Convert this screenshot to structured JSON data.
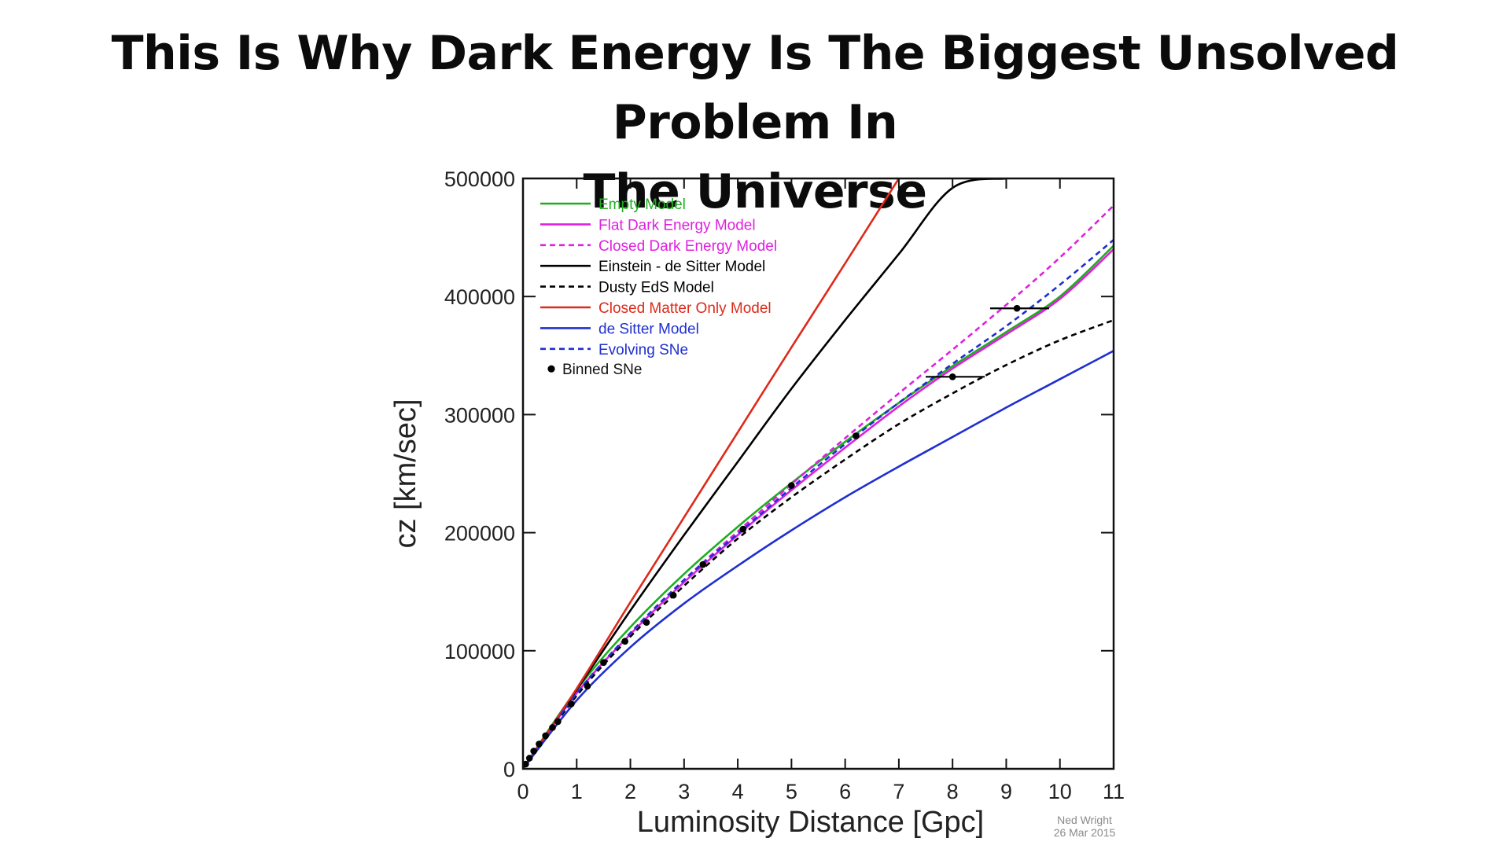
{
  "headline": {
    "line1": "This Is Why Dark Energy Is The Biggest Unsolved Problem In",
    "line2": "The Universe"
  },
  "chart_data": {
    "type": "line",
    "xlabel": "Luminosity Distance [Gpc]",
    "ylabel": "cz [km/sec]",
    "xlim": [
      0,
      11
    ],
    "ylim": [
      0,
      500000
    ],
    "xticks": [
      "0",
      "1",
      "2",
      "3",
      "4",
      "5",
      "6",
      "7",
      "8",
      "9",
      "10",
      "11"
    ],
    "yticks": [
      "0",
      "100000",
      "200000",
      "300000",
      "400000",
      "500000"
    ],
    "grid": false,
    "legend_position": "top-left",
    "credit": [
      "Ned Wright",
      "26 Mar 2015"
    ],
    "series": [
      {
        "name": "Empty Model",
        "color": "#1fae1f",
        "style": "solid",
        "x": [
          0,
          1,
          2,
          3,
          4,
          5,
          6,
          7,
          8,
          9,
          10,
          11
        ],
        "y": [
          0,
          67000,
          120000,
          165000,
          205000,
          242000,
          277000,
          310000,
          341000,
          370000,
          400000,
          443000
        ]
      },
      {
        "name": "Flat Dark Energy Model",
        "color": "#e020e0",
        "style": "solid",
        "x": [
          0,
          1,
          2,
          3,
          4,
          5,
          6,
          7,
          8,
          9,
          10,
          11
        ],
        "y": [
          0,
          64000,
          114000,
          158000,
          198000,
          236000,
          272000,
          307000,
          339000,
          368000,
          398000,
          440000
        ]
      },
      {
        "name": "Closed Dark Energy Model",
        "color": "#e020e0",
        "style": "dashed",
        "x": [
          0,
          1,
          2,
          3,
          4,
          5,
          6,
          7,
          8,
          9,
          10,
          11
        ],
        "y": [
          0,
          64000,
          115000,
          160000,
          201000,
          241000,
          280000,
          318000,
          355000,
          393000,
          433000,
          477000
        ]
      },
      {
        "name": "Einstein - de Sitter Model",
        "color": "#000000",
        "style": "solid",
        "x": [
          0,
          1,
          2,
          3,
          4,
          5,
          6,
          7,
          8,
          9
        ],
        "y": [
          0,
          67000,
          134000,
          198000,
          260000,
          322000,
          380000,
          436000,
          492000,
          500000
        ]
      },
      {
        "name": "Dusty EdS Model",
        "color": "#000000",
        "style": "dashed",
        "x": [
          0,
          1,
          2,
          3,
          4,
          5,
          6,
          7,
          8,
          9,
          10,
          11
        ],
        "y": [
          0,
          62000,
          112000,
          155000,
          195000,
          230000,
          262000,
          292000,
          318000,
          342000,
          363000,
          380000
        ]
      },
      {
        "name": "Closed Matter Only Model",
        "color": "#dd2a1a",
        "style": "solid",
        "x": [
          0,
          1,
          2,
          3,
          4,
          5,
          6,
          7
        ],
        "y": [
          0,
          68000,
          141000,
          213000,
          285000,
          357000,
          428000,
          500000
        ]
      },
      {
        "name": "de Sitter Model",
        "color": "#1f2fd0",
        "style": "solid",
        "x": [
          0,
          1,
          2,
          3,
          4,
          5,
          6,
          7,
          8,
          9,
          10,
          11
        ],
        "y": [
          0,
          58000,
          103000,
          140000,
          172000,
          202000,
          230000,
          256000,
          281000,
          306000,
          330000,
          354000
        ]
      },
      {
        "name": "Evolving SNe",
        "color": "#1f2fd0",
        "style": "dashed",
        "x": [
          0,
          1,
          2,
          3,
          4,
          5,
          6,
          7,
          8,
          9,
          10,
          11
        ],
        "y": [
          0,
          64000,
          115000,
          160000,
          199000,
          238000,
          275000,
          310000,
          343000,
          375000,
          410000,
          448000
        ]
      }
    ],
    "binned_sne": {
      "name": "Binned SNe",
      "color": "#000000",
      "points": [
        {
          "x": 0.05,
          "y": 4000
        },
        {
          "x": 0.12,
          "y": 9000
        },
        {
          "x": 0.2,
          "y": 15000
        },
        {
          "x": 0.3,
          "y": 21000
        },
        {
          "x": 0.42,
          "y": 28000
        },
        {
          "x": 0.55,
          "y": 35000
        },
        {
          "x": 0.65,
          "y": 40000
        },
        {
          "x": 0.9,
          "y": 55000
        },
        {
          "x": 1.2,
          "y": 70000
        },
        {
          "x": 1.5,
          "y": 90000
        },
        {
          "x": 1.9,
          "y": 108000
        },
        {
          "x": 2.3,
          "y": 124000
        },
        {
          "x": 2.8,
          "y": 147000
        },
        {
          "x": 3.35,
          "y": 173000
        },
        {
          "x": 4.1,
          "y": 203000
        },
        {
          "x": 5.0,
          "y": 240000
        },
        {
          "x": 6.2,
          "y": 282000
        },
        {
          "x": 8.0,
          "y": 332000,
          "xerr": [
            7.5,
            8.6
          ]
        },
        {
          "x": 9.2,
          "y": 390000,
          "xerr": [
            8.7,
            9.8
          ]
        }
      ]
    }
  }
}
